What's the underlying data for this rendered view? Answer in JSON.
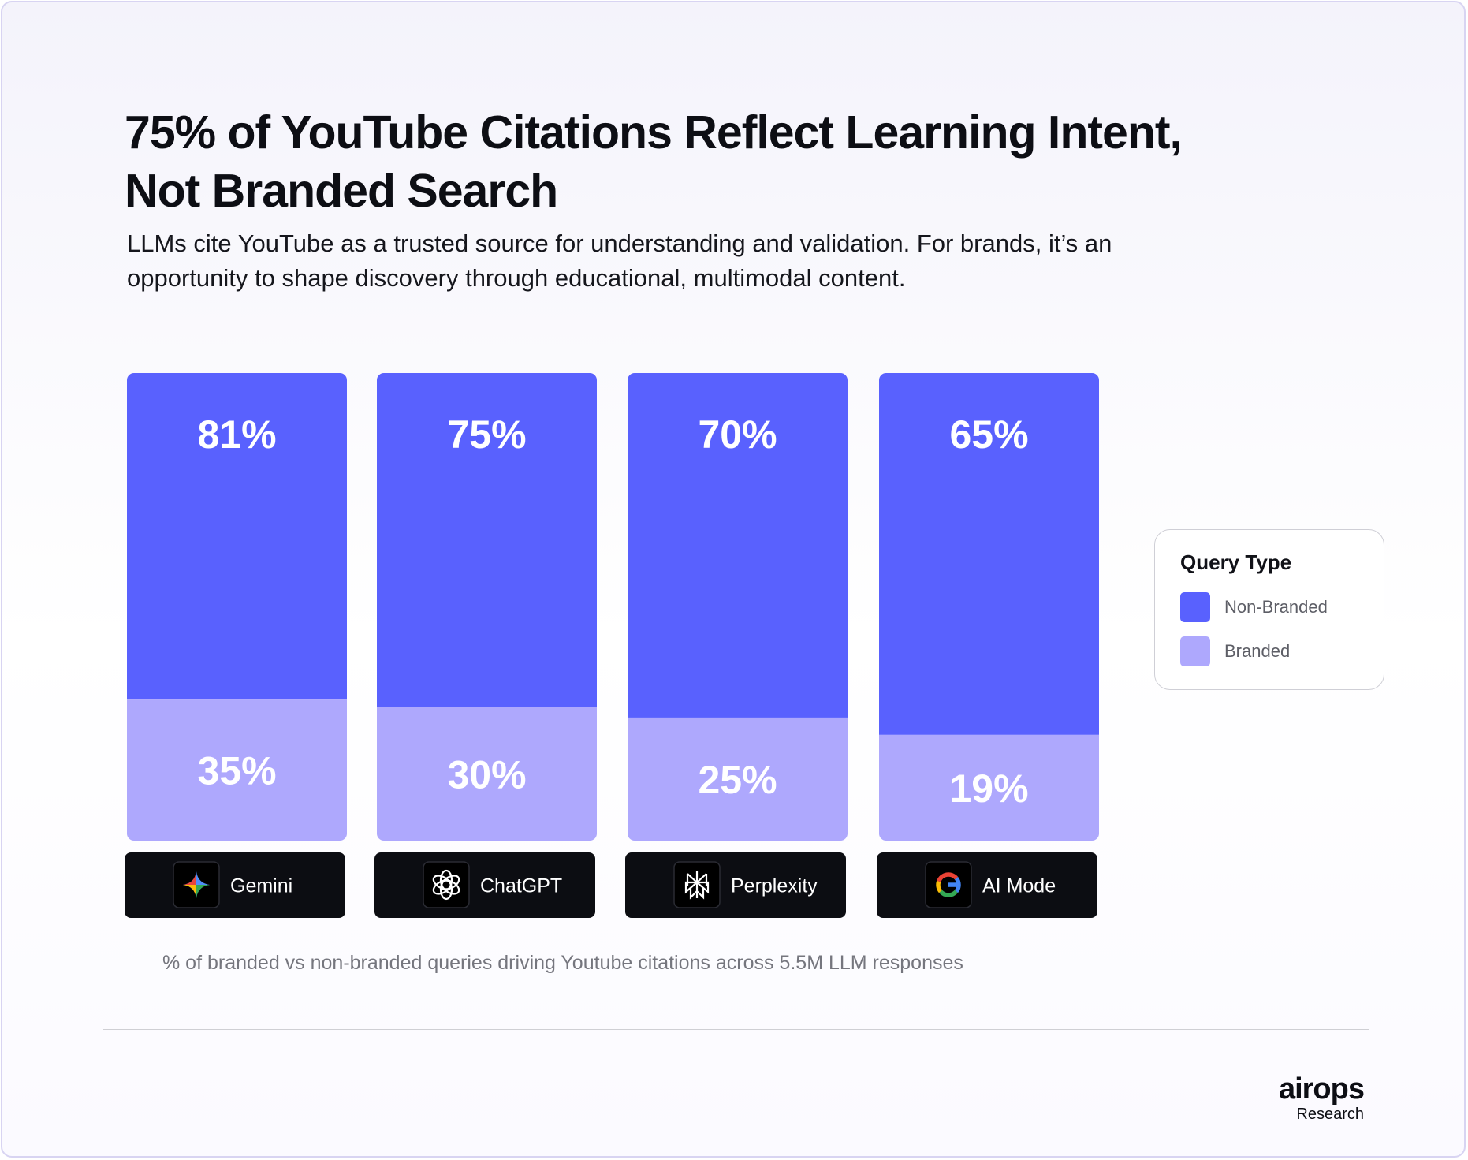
{
  "header": {
    "title": "75% of YouTube Citations Reflect Learning Intent, Not Branded Search",
    "subtitle": "LLMs cite YouTube as a trusted source for understanding and validation. For brands, it’s an opportunity to shape discovery through educational, multimodal content."
  },
  "chart_data": {
    "type": "bar",
    "stacked": true,
    "categories": [
      "Gemini",
      "ChatGPT",
      "Perplexity",
      "AI Mode"
    ],
    "series": [
      {
        "name": "Non-Branded",
        "values": [
          81,
          75,
          70,
          65
        ],
        "labels": [
          "81%",
          "75%",
          "70%",
          "65%"
        ],
        "color": "#5961fe"
      },
      {
        "name": "Branded",
        "values": [
          35,
          30,
          25,
          19
        ],
        "labels": [
          "35%",
          "30%",
          "25%",
          "19%"
        ],
        "color": "#aea8fd"
      }
    ],
    "category_icons": [
      "gemini-icon",
      "chatgpt-icon",
      "perplexity-icon",
      "google-icon"
    ],
    "legend_placement": "right",
    "grid": false,
    "xlabel": "",
    "ylabel": ""
  },
  "legend": {
    "title": "Query Type",
    "items": [
      {
        "label": "Non-Branded",
        "color": "#5961fe"
      },
      {
        "label": "Branded",
        "color": "#aea8fd"
      }
    ]
  },
  "footnote": "% of branded vs non-branded queries driving Youtube citations across 5.5M LLM responses",
  "brand": {
    "wordmark": "airops",
    "tagline": "Research"
  },
  "colors": {
    "pill_background": "#0c0d12",
    "icon_tile": "#000000"
  }
}
